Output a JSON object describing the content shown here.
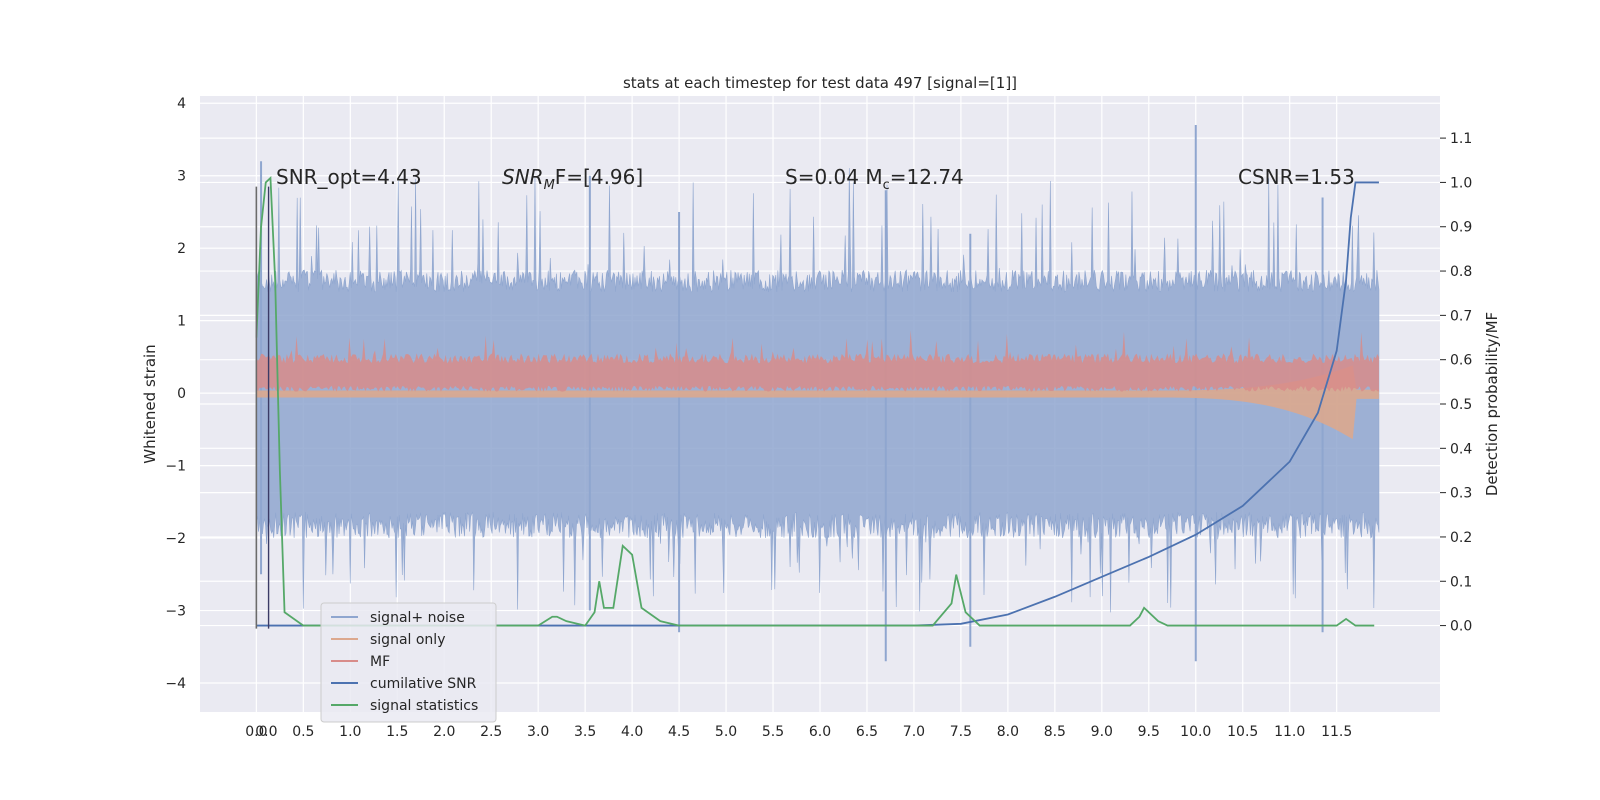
{
  "chart_data": {
    "type": "line",
    "title": "stats at each timestep for test data 497 [signal=[1]]",
    "xlabel": "",
    "ylabel": "Whitened strain",
    "y2label": "Detection probability/MF",
    "xlim": [
      -0.6,
      12.6
    ],
    "ylim": [
      -4.4,
      4.1
    ],
    "y2lim": [
      -0.195,
      1.195
    ],
    "x_ticks": [
      "0.0",
      "0.0",
      "0.5",
      "1.0",
      "1.5",
      "2.0",
      "2.5",
      "3.0",
      "3.5",
      "4.0",
      "4.5",
      "5.0",
      "5.5",
      "6.0",
      "6.5",
      "7.0",
      "7.5",
      "8.0",
      "8.5",
      "9.0",
      "9.5",
      "10.0",
      "10.5",
      "11.0",
      "11.5"
    ],
    "y_ticks": [
      "4",
      "3",
      "2",
      "1",
      "0",
      "−1",
      "−2",
      "−3",
      "−4"
    ],
    "y2_ticks": [
      "1.1",
      "1.0",
      "0.9",
      "0.8",
      "0.7",
      "0.6",
      "0.5",
      "0.4",
      "0.3",
      "0.2",
      "0.1",
      "0.0"
    ],
    "grid": true,
    "legend_placement": "lower-left",
    "annotations": [
      {
        "text": "SNR_opt=4.43"
      },
      {
        "text_main": "SNR",
        "text_sub": "M",
        "text_rest": "F=[4.96]"
      },
      {
        "text": "S=0.04   M",
        "text_sub": "c",
        "text_rest": "=12.74"
      },
      {
        "text": "CSNR=1.53"
      }
    ],
    "legend": [
      {
        "label": "signal+ noise",
        "color": "#8fa6cf"
      },
      {
        "label": "signal only",
        "color": "#dca88e"
      },
      {
        "label": "MF",
        "color": "#d88c8a"
      },
      {
        "label": "cumilative SNR",
        "color": "#4c72b0"
      },
      {
        "label": "signal statistics",
        "color": "#55a868"
      }
    ],
    "series": [
      {
        "name": "cumilative SNR",
        "axis": "right",
        "x": [
          0.0,
          0.13,
          0.5,
          1.0,
          2.0,
          3.0,
          4.0,
          5.0,
          6.0,
          7.0,
          7.5,
          8.0,
          8.5,
          9.0,
          9.5,
          10.0,
          10.5,
          11.0,
          11.3,
          11.5,
          11.6,
          11.65,
          11.7,
          11.95
        ],
        "y": [
          0.0,
          0.0,
          0.0,
          0.0,
          0.0,
          0.0,
          0.0,
          0.0,
          0.0,
          0.0,
          0.004,
          0.025,
          0.065,
          0.11,
          0.155,
          0.205,
          0.27,
          0.37,
          0.48,
          0.62,
          0.78,
          0.92,
          1.0,
          1.0
        ]
      },
      {
        "name": "signal statistics",
        "axis": "right",
        "x": [
          0.0,
          0.05,
          0.1,
          0.15,
          0.2,
          0.25,
          0.3,
          0.5,
          1.0,
          2.0,
          3.0,
          3.15,
          3.2,
          3.3,
          3.5,
          3.6,
          3.65,
          3.7,
          3.8,
          3.9,
          4.0,
          4.1,
          4.3,
          4.5,
          5.0,
          6.0,
          7.0,
          7.2,
          7.4,
          7.45,
          7.55,
          7.7,
          8.0,
          9.0,
          9.3,
          9.4,
          9.45,
          9.6,
          9.7,
          10.0,
          11.0,
          11.5,
          11.6,
          11.7,
          11.9
        ],
        "y": [
          0.65,
          0.9,
          1.0,
          1.01,
          0.78,
          0.35,
          0.03,
          0.0,
          0.0,
          0.0,
          0.0,
          0.02,
          0.02,
          0.01,
          0.0,
          0.03,
          0.1,
          0.04,
          0.04,
          0.18,
          0.16,
          0.04,
          0.01,
          0.0,
          0.0,
          0.0,
          0.0,
          0.0,
          0.05,
          0.115,
          0.03,
          0.0,
          0.0,
          0.0,
          0.0,
          0.02,
          0.04,
          0.01,
          0.0,
          0.0,
          0.0,
          0.0,
          0.015,
          0.0,
          0.0
        ]
      }
    ],
    "bands": [
      {
        "name": "signal+ noise",
        "x_range": [
          0.0,
          11.95
        ],
        "center": -0.05,
        "typical_max": 1.7,
        "typical_min": -2.0,
        "peak_max": 3.7,
        "peak_min": -3.7
      },
      {
        "name": "signal only",
        "x_range": [
          0.0,
          11.95
        ],
        "center": 0.0,
        "typical_max": 0.1,
        "typical_min": -0.02
      },
      {
        "name": "MF",
        "x_range": [
          0.0,
          11.95
        ],
        "center": 0.3,
        "typical_max": 0.55,
        "typical_min": 0.02
      }
    ]
  }
}
